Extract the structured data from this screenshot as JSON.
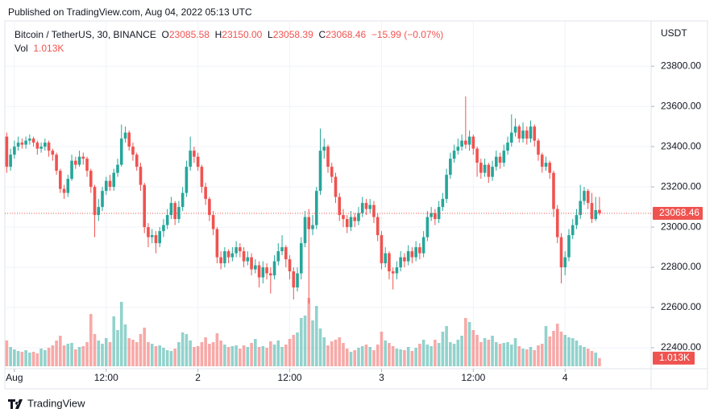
{
  "published": "Published on TradingView.com, Aug 04, 2022 05:13 UTC",
  "legend": {
    "symbol": "Bitcoin / TetherUS, 30, BINANCE",
    "o_label": "O",
    "o": "23085.58",
    "h_label": "H",
    "h": "23150.00",
    "l_label": "L",
    "l": "23058.39",
    "c_label": "C",
    "c": "23068.46",
    "change": "−15.99 (−0.07%)",
    "vol_label": "Vol",
    "vol": "1.013K"
  },
  "brand": "TradingView",
  "chart_data": {
    "type": "candlestick",
    "currency": "USDT",
    "up_color": "#26a69a",
    "down_color": "#ef5350",
    "ylim": [
      22296,
      24025
    ],
    "yticks": [
      {
        "value": 23800,
        "label": "23800.00"
      },
      {
        "value": 23600,
        "label": "23600.00"
      },
      {
        "value": 23400,
        "label": "23400.00"
      },
      {
        "value": 23200,
        "label": "23200.00"
      },
      {
        "value": 23000,
        "label": "23000.00"
      },
      {
        "value": 22800,
        "label": "22800.00"
      },
      {
        "value": 22600,
        "label": "22600.00"
      },
      {
        "value": 22400,
        "label": "22400.00"
      }
    ],
    "xlim": [
      -0.5,
      168.5
    ],
    "xticks": [
      {
        "value": 2,
        "label": "Aug"
      },
      {
        "value": 26,
        "label": "12:00"
      },
      {
        "value": 50,
        "label": "2"
      },
      {
        "value": 74,
        "label": "12:00"
      },
      {
        "value": 98,
        "label": "3"
      },
      {
        "value": 122,
        "label": "12:00"
      },
      {
        "value": 146,
        "label": "4"
      }
    ],
    "grid": true,
    "last_price": 23068.46,
    "volume_label": "1.013K",
    "candles": [
      [
        23450,
        23470,
        23270,
        23300
      ],
      [
        23300,
        23390,
        23280,
        23360
      ],
      [
        23360,
        23430,
        23340,
        23400
      ],
      [
        23400,
        23450,
        23380,
        23420
      ],
      [
        23420,
        23440,
        23390,
        23410
      ],
      [
        23410,
        23450,
        23390,
        23430
      ],
      [
        23430,
        23460,
        23410,
        23440
      ],
      [
        23440,
        23450,
        23400,
        23420
      ],
      [
        23420,
        23430,
        23360,
        23390
      ],
      [
        23390,
        23420,
        23370,
        23400
      ],
      [
        23400,
        23440,
        23380,
        23420
      ],
      [
        23420,
        23430,
        23350,
        23380
      ],
      [
        23380,
        23390,
        23330,
        23360
      ],
      [
        23360,
        23370,
        23260,
        23280
      ],
      [
        23280,
        23290,
        23170,
        23190
      ],
      [
        23190,
        23210,
        23140,
        23170
      ],
      [
        23170,
        23260,
        23150,
        23240
      ],
      [
        23240,
        23360,
        23230,
        23330
      ],
      [
        23330,
        23350,
        23290,
        23310
      ],
      [
        23310,
        23380,
        23300,
        23350
      ],
      [
        23350,
        23370,
        23310,
        23340
      ],
      [
        23340,
        23350,
        23250,
        23280
      ],
      [
        23280,
        23290,
        23170,
        23200
      ],
      [
        23200,
        23210,
        22950,
        23060
      ],
      [
        23060,
        23140,
        23030,
        23100
      ],
      [
        23100,
        23200,
        23080,
        23180
      ],
      [
        23180,
        23250,
        23160,
        23230
      ],
      [
        23230,
        23260,
        23180,
        23200
      ],
      [
        23200,
        23290,
        23180,
        23270
      ],
      [
        23270,
        23340,
        23250,
        23310
      ],
      [
        23310,
        23510,
        23300,
        23440
      ],
      [
        23440,
        23500,
        23420,
        23470
      ],
      [
        23470,
        23480,
        23380,
        23400
      ],
      [
        23400,
        23420,
        23330,
        23360
      ],
      [
        23360,
        23370,
        23280,
        23300
      ],
      [
        23300,
        23320,
        23180,
        23210
      ],
      [
        23210,
        23220,
        22970,
        23000
      ],
      [
        23000,
        23020,
        22900,
        22950
      ],
      [
        22950,
        22990,
        22920,
        22960
      ],
      [
        22960,
        22980,
        22870,
        22920
      ],
      [
        22920,
        23000,
        22900,
        22980
      ],
      [
        22980,
        23040,
        22950,
        23010
      ],
      [
        23010,
        23090,
        22990,
        23060
      ],
      [
        23060,
        23150,
        23040,
        23120
      ],
      [
        23120,
        23130,
        23010,
        23040
      ],
      [
        23040,
        23130,
        23020,
        23100
      ],
      [
        23100,
        23200,
        23080,
        23170
      ],
      [
        23170,
        23330,
        23150,
        23300
      ],
      [
        23300,
        23450,
        23280,
        23380
      ],
      [
        23380,
        23400,
        23320,
        23350
      ],
      [
        23350,
        23370,
        23280,
        23300
      ],
      [
        23300,
        23310,
        23170,
        23200
      ],
      [
        23200,
        23220,
        23110,
        23140
      ],
      [
        23140,
        23150,
        23030,
        23060
      ],
      [
        23060,
        23080,
        22960,
        22990
      ],
      [
        22990,
        23000,
        22820,
        22850
      ],
      [
        22850,
        22880,
        22790,
        22820
      ],
      [
        22820,
        22900,
        22800,
        22880
      ],
      [
        22880,
        22890,
        22820,
        22850
      ],
      [
        22850,
        22900,
        22830,
        22870
      ],
      [
        22870,
        22930,
        22850,
        22900
      ],
      [
        22900,
        22920,
        22850,
        22880
      ],
      [
        22880,
        22900,
        22800,
        22830
      ],
      [
        22830,
        22880,
        22810,
        22850
      ],
      [
        22850,
        22870,
        22760,
        22790
      ],
      [
        22790,
        22840,
        22770,
        22810
      ],
      [
        22810,
        22830,
        22700,
        22750
      ],
      [
        22750,
        22830,
        22720,
        22800
      ],
      [
        22800,
        22820,
        22740,
        22770
      ],
      [
        22770,
        22800,
        22670,
        22760
      ],
      [
        22760,
        22860,
        22740,
        22830
      ],
      [
        22830,
        22920,
        22810,
        22880
      ],
      [
        22880,
        22960,
        22860,
        22900
      ],
      [
        22900,
        22910,
        22800,
        22840
      ],
      [
        22840,
        22860,
        22740,
        22780
      ],
      [
        22780,
        22800,
        22640,
        22700
      ],
      [
        22700,
        22800,
        22680,
        22770
      ],
      [
        22770,
        22950,
        22740,
        22920
      ],
      [
        22920,
        23080,
        22900,
        23050
      ],
      [
        23050,
        23090,
        22620,
        22990
      ],
      [
        22990,
        23060,
        22960,
        23010
      ],
      [
        23010,
        23200,
        22990,
        23180
      ],
      [
        23180,
        23490,
        23160,
        23380
      ],
      [
        23380,
        23440,
        23340,
        23400
      ],
      [
        23400,
        23410,
        23270,
        23300
      ],
      [
        23300,
        23320,
        23220,
        23250
      ],
      [
        23250,
        23270,
        23120,
        23150
      ],
      [
        23150,
        23170,
        23030,
        23060
      ],
      [
        23060,
        23090,
        23000,
        23040
      ],
      [
        23040,
        23060,
        22970,
        23000
      ],
      [
        23000,
        23080,
        22980,
        23050
      ],
      [
        23050,
        23070,
        23000,
        23030
      ],
      [
        23030,
        23100,
        23010,
        23070
      ],
      [
        23070,
        23150,
        23050,
        23120
      ],
      [
        23120,
        23140,
        23060,
        23090
      ],
      [
        23090,
        23140,
        23070,
        23110
      ],
      [
        23110,
        23130,
        23020,
        23050
      ],
      [
        23050,
        23070,
        22930,
        22960
      ],
      [
        22960,
        22980,
        22790,
        22820
      ],
      [
        22820,
        22900,
        22800,
        22870
      ],
      [
        22870,
        22880,
        22740,
        22780
      ],
      [
        22780,
        22800,
        22690,
        22770
      ],
      [
        22770,
        22830,
        22740,
        22800
      ],
      [
        22800,
        22880,
        22780,
        22850
      ],
      [
        22850,
        22870,
        22800,
        22830
      ],
      [
        22830,
        22910,
        22810,
        22880
      ],
      [
        22880,
        22900,
        22820,
        22850
      ],
      [
        22850,
        22930,
        22830,
        22900
      ],
      [
        22900,
        22920,
        22840,
        22870
      ],
      [
        22870,
        22980,
        22850,
        22950
      ],
      [
        22950,
        23080,
        22930,
        23050
      ],
      [
        23050,
        23100,
        23030,
        23070
      ],
      [
        23070,
        23090,
        23010,
        23040
      ],
      [
        23040,
        23130,
        23020,
        23100
      ],
      [
        23100,
        23170,
        23080,
        23140
      ],
      [
        23140,
        23290,
        23120,
        23260
      ],
      [
        23260,
        23370,
        23240,
        23340
      ],
      [
        23340,
        23410,
        23320,
        23380
      ],
      [
        23380,
        23440,
        23360,
        23400
      ],
      [
        23400,
        23460,
        23380,
        23430
      ],
      [
        23430,
        23650,
        23390,
        23410
      ],
      [
        23410,
        23480,
        23380,
        23450
      ],
      [
        23450,
        23460,
        23360,
        23390
      ],
      [
        23390,
        23400,
        23250,
        23320
      ],
      [
        23320,
        23340,
        23240,
        23270
      ],
      [
        23270,
        23340,
        23250,
        23310
      ],
      [
        23310,
        23320,
        23220,
        23250
      ],
      [
        23250,
        23330,
        23230,
        23300
      ],
      [
        23300,
        23380,
        23280,
        23350
      ],
      [
        23350,
        23370,
        23290,
        23320
      ],
      [
        23320,
        23410,
        23300,
        23380
      ],
      [
        23380,
        23450,
        23360,
        23420
      ],
      [
        23420,
        23560,
        23400,
        23470
      ],
      [
        23470,
        23540,
        23450,
        23500
      ],
      [
        23500,
        23510,
        23420,
        23440
      ],
      [
        23440,
        23520,
        23420,
        23480
      ],
      [
        23480,
        23500,
        23410,
        23440
      ],
      [
        23440,
        23530,
        23420,
        23500
      ],
      [
        23500,
        23510,
        23400,
        23430
      ],
      [
        23430,
        23440,
        23330,
        23360
      ],
      [
        23360,
        23370,
        23270,
        23300
      ],
      [
        23300,
        23350,
        23280,
        23320
      ],
      [
        23320,
        23330,
        23240,
        23270
      ],
      [
        23270,
        23280,
        23050,
        23090
      ],
      [
        23090,
        23110,
        22920,
        22950
      ],
      [
        22950,
        22970,
        22720,
        22800
      ],
      [
        22800,
        22880,
        22760,
        22850
      ],
      [
        22850,
        22990,
        22830,
        22960
      ],
      [
        22960,
        23040,
        22940,
        23010
      ],
      [
        23010,
        23090,
        22990,
        23060
      ],
      [
        23060,
        23210,
        23040,
        23130
      ],
      [
        23130,
        23200,
        23110,
        23180
      ],
      [
        23180,
        23190,
        23090,
        23120
      ],
      [
        23120,
        23170,
        23020,
        23040
      ],
      [
        23040,
        23150,
        23030,
        23084.45
      ],
      [
        23085.58,
        23150,
        23058.39,
        23068.46
      ]
    ],
    "volumes": [
      3200,
      2400,
      2100,
      1900,
      1800,
      2000,
      1700,
      1800,
      1600,
      2200,
      2000,
      2300,
      2600,
      3200,
      3800,
      2600,
      2800,
      2900,
      2100,
      2400,
      2500,
      3000,
      6500,
      4000,
      3200,
      2800,
      3500,
      3000,
      6200,
      4500,
      8000,
      5200,
      3500,
      3300,
      3000,
      4000,
      4800,
      3000,
      2800,
      2500,
      2600,
      2300,
      2000,
      1900,
      2200,
      3000,
      4200,
      4000,
      3200,
      2400,
      2500,
      3000,
      3600,
      2800,
      3000,
      4100,
      3200,
      2700,
      2400,
      2500,
      2600,
      2200,
      2600,
      2400,
      2900,
      3400,
      2400,
      2500,
      2300,
      3100,
      2700,
      3200,
      2400,
      2700,
      3400,
      3900,
      4200,
      6000,
      6300,
      8500,
      5700,
      7500,
      4700,
      3600,
      2600,
      3100,
      3300,
      3600,
      2900,
      2200,
      1800,
      2000,
      2300,
      2500,
      2700,
      2400,
      2000,
      2700,
      4300,
      3200,
      2900,
      2500,
      2200,
      2100,
      2000,
      2400,
      1900,
      2300,
      2800,
      3300,
      2700,
      2500,
      3300,
      2900,
      4300,
      5000,
      3000,
      2800,
      3300,
      3800,
      6000,
      5500,
      4500,
      3900,
      3000,
      3500,
      3300,
      3800,
      3000,
      2800,
      2900,
      3000,
      2700,
      3500,
      2500,
      2200,
      2100,
      2400,
      2000,
      2600,
      2800,
      5000,
      3700,
      4400,
      5300,
      4300,
      3900,
      3600,
      3500,
      3200,
      2600,
      2400,
      2200,
      1900,
      1700,
      1013
    ]
  }
}
